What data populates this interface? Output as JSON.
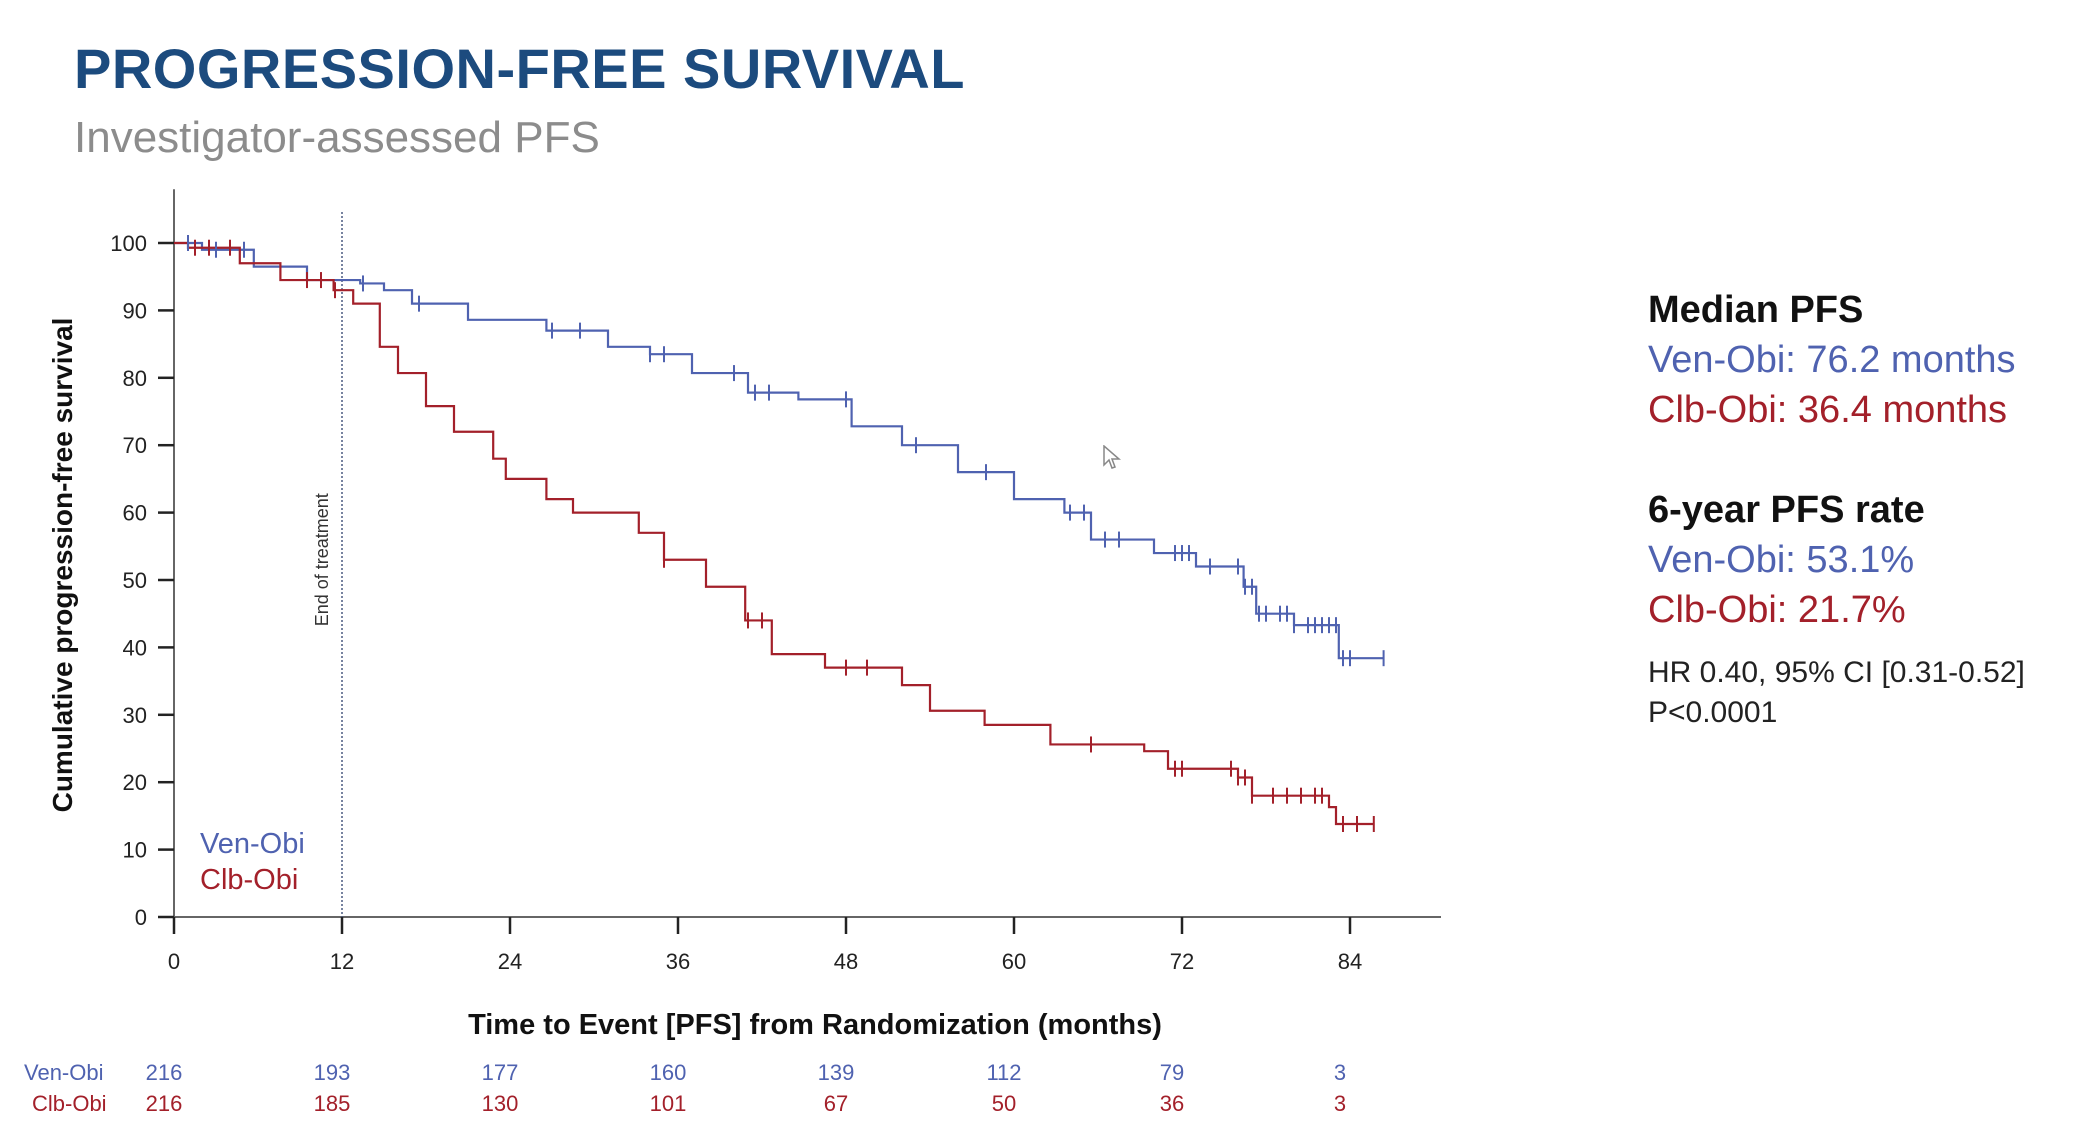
{
  "title": "PROGRESSION-FREE SURVIVAL",
  "subtitle": "Investigator-assessed PFS",
  "colors": {
    "title": "#1c4b7e",
    "ven_obi": "#4f62b0",
    "clb_obi": "#a3202a",
    "axis": "#666666"
  },
  "stats": {
    "median_heading": "Median PFS",
    "median_ven": "Ven-Obi: 76.2 months",
    "median_clb": "Clb-Obi: 36.4 months",
    "rate_heading": "6-year PFS rate",
    "rate_ven": "Ven-Obi: 53.1%",
    "rate_clb": "Clb-Obi: 21.7%",
    "hr": "HR 0.40, 95% CI [0.31-0.52]",
    "p": "P<0.0001"
  },
  "chart_data": {
    "type": "line",
    "subtype": "kaplan-meier",
    "title": "",
    "xlabel": "Time to Event [PFS] from Randomization (months)",
    "ylabel": "Cumulative progression-free survival",
    "xlim": [
      0,
      90.5
    ],
    "ylim": [
      0,
      105
    ],
    "xticks": [
      0,
      12,
      24,
      36,
      48,
      60,
      72,
      84
    ],
    "yticks": [
      0,
      10,
      20,
      30,
      40,
      50,
      60,
      70,
      80,
      90,
      100
    ],
    "grid": false,
    "legend": {
      "position": "bottom-left",
      "entries": [
        "Ven-Obi",
        "Clb-Obi"
      ]
    },
    "annotations": [
      {
        "text": "End of treatment",
        "x": 12,
        "style": "dotted-vertical-line"
      }
    ],
    "series": [
      {
        "name": "Ven-Obi",
        "steps": [
          [
            0,
            100
          ],
          [
            2,
            99
          ],
          [
            5.7,
            96.5
          ],
          [
            9.5,
            94.5
          ],
          [
            13.3,
            94
          ],
          [
            15,
            93
          ],
          [
            17,
            91
          ],
          [
            21,
            88.6
          ],
          [
            26.6,
            87
          ],
          [
            31,
            84.6
          ],
          [
            34,
            83.5
          ],
          [
            37,
            80.7
          ],
          [
            41,
            77.8
          ],
          [
            44.6,
            76.8
          ],
          [
            48.4,
            72.8
          ],
          [
            52,
            70
          ],
          [
            56,
            66
          ],
          [
            60,
            62
          ],
          [
            63.6,
            60
          ],
          [
            65.5,
            56
          ],
          [
            70,
            54
          ],
          [
            73,
            52
          ],
          [
            76.4,
            49
          ],
          [
            77.3,
            45
          ],
          [
            80,
            43.3
          ],
          [
            83.2,
            38.4
          ],
          [
            86.4,
            38.4
          ]
        ],
        "censor_marks": [
          1,
          3,
          5,
          13.5,
          17.5,
          27,
          29,
          34,
          35,
          40,
          41.5,
          42.5,
          48,
          53,
          58,
          64,
          65,
          66.5,
          67.5,
          71.5,
          72,
          72.5,
          74,
          76,
          76.5,
          77,
          77.5,
          78,
          79,
          79.5,
          80,
          81,
          81.5,
          82,
          82.5,
          83,
          83.5,
          84,
          86.4
        ]
      },
      {
        "name": "Clb-Obi",
        "steps": [
          [
            0,
            100
          ],
          [
            1,
            99.3
          ],
          [
            4.7,
            97
          ],
          [
            7.6,
            94.5
          ],
          [
            11.4,
            93
          ],
          [
            12.8,
            91
          ],
          [
            14.7,
            84.6
          ],
          [
            16,
            80.7
          ],
          [
            18,
            75.8
          ],
          [
            20,
            72
          ],
          [
            22.8,
            68
          ],
          [
            23.7,
            65
          ],
          [
            26.6,
            62
          ],
          [
            28.5,
            60
          ],
          [
            33.2,
            57
          ],
          [
            35,
            53
          ],
          [
            38,
            49
          ],
          [
            40.8,
            44
          ],
          [
            42.7,
            39
          ],
          [
            46.5,
            37
          ],
          [
            52,
            34.4
          ],
          [
            54,
            30.6
          ],
          [
            57.9,
            28.5
          ],
          [
            62.6,
            25.6
          ],
          [
            69.3,
            24.6
          ],
          [
            71,
            22
          ],
          [
            76,
            20.7
          ],
          [
            77,
            18
          ],
          [
            82.5,
            16.3
          ],
          [
            83,
            13.8
          ],
          [
            85.7,
            13.8
          ]
        ],
        "censor_marks": [
          1.5,
          2.5,
          4,
          9.5,
          10.5,
          11.5,
          35,
          41,
          42,
          48,
          49.5,
          65.5,
          71.5,
          72,
          75.5,
          76,
          76.5,
          77,
          78.5,
          79.5,
          80.5,
          81.5,
          82,
          83.5,
          84.5,
          85.7
        ]
      }
    ],
    "risk_table": {
      "label": "",
      "times": [
        0,
        12,
        24,
        36,
        48,
        60,
        72,
        84
      ],
      "rows": [
        {
          "name": "Ven-Obi",
          "values": [
            216,
            193,
            177,
            160,
            139,
            112,
            79,
            3
          ]
        },
        {
          "name": "Clb-Obi",
          "values": [
            216,
            185,
            130,
            101,
            67,
            50,
            36,
            3
          ]
        }
      ]
    }
  }
}
